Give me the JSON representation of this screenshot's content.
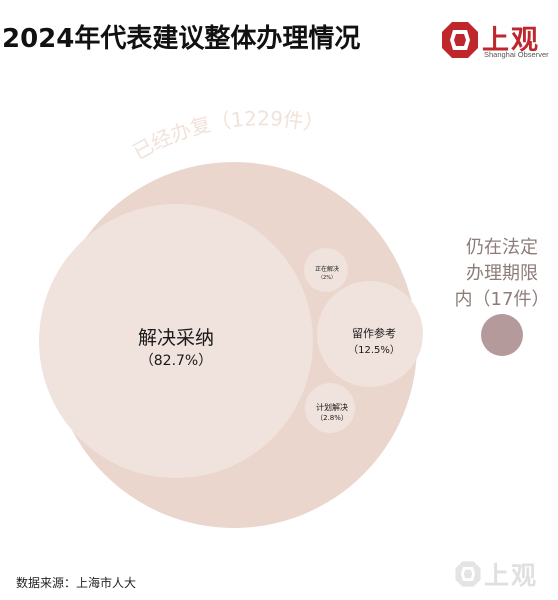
{
  "title": "2024年代表建议整体办理情况",
  "brand": {
    "name": "上观",
    "subtitle": "Shanghai Observer",
    "logo": "shanghai-observer-logo",
    "accent": "#c0272d"
  },
  "source": "数据来源：上海市人大",
  "watermark": {
    "text": "上观",
    "logo": "shanghai-observer-logo"
  },
  "chart_data": {
    "type": "bubble",
    "groups": [
      {
        "label": "已经办复（1229件）",
        "count": 1229,
        "color": "#ead6cd",
        "label_color": "#f1e2da",
        "children": [
          {
            "name": "解决采纳",
            "value_label": "（82.7%）",
            "share": 82.7,
            "color": "#f0e2dc"
          },
          {
            "name": "留作参考",
            "value_label": "（12.5%）",
            "share": 12.5,
            "color": "#f0e2dc"
          },
          {
            "name": "计划解决",
            "value_label": "（2.8%）",
            "share": 2.8,
            "color": "#f0e2dc"
          },
          {
            "name": "正在解决",
            "value_label": "（2%）",
            "share": 2,
            "color": "#f0e2dc"
          }
        ]
      },
      {
        "label_lines": [
          "仍在法定",
          "办理期限",
          "内（17件）"
        ],
        "count": 17,
        "color": "#b49a9b",
        "label_color": "#8d7c79"
      }
    ]
  }
}
